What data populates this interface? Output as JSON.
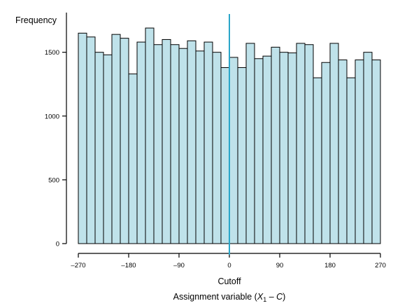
{
  "chart_data": {
    "type": "bar",
    "ylabel": "Frequency",
    "xlabel": "Assignment variable (X1 – C)",
    "xlabel_parts": {
      "prefix": "Assignment variable (",
      "var": "X",
      "sub": "1",
      "mid": " – ",
      "const": "C",
      "suffix": ")"
    },
    "cutoff_label": "Cutoff",
    "cutoff_value": 0,
    "cutoff_color": "#2aa6c9",
    "bar_color": "#bfe2ea",
    "xlim": [
      -270,
      270
    ],
    "ylim": [
      0,
      1800
    ],
    "xticks": [
      -270,
      -180,
      -90,
      0,
      90,
      180,
      270
    ],
    "xtick_labels": [
      "–270",
      "–180",
      "–90",
      "0",
      "90",
      "180",
      "270"
    ],
    "yticks": [
      0,
      500,
      1000,
      1500
    ],
    "ytick_labels": [
      "0",
      "500",
      "1000",
      "1500"
    ],
    "bin_width": 15,
    "bins_start": [
      -270,
      -255,
      -240,
      -225,
      -210,
      -195,
      -180,
      -165,
      -150,
      -135,
      -120,
      -105,
      -90,
      -75,
      -60,
      -45,
      -30,
      -15,
      0,
      15,
      30,
      45,
      60,
      75,
      90,
      105,
      120,
      135,
      150,
      165,
      180,
      195,
      210,
      225,
      240,
      255
    ],
    "values": [
      1650,
      1620,
      1500,
      1480,
      1640,
      1610,
      1330,
      1580,
      1690,
      1560,
      1600,
      1560,
      1530,
      1590,
      1510,
      1580,
      1500,
      1380,
      1460,
      1380,
      1570,
      1450,
      1470,
      1540,
      1500,
      1495,
      1570,
      1560,
      1300,
      1420,
      1570,
      1440,
      1300,
      1440,
      1500,
      1440
    ],
    "grid": false
  }
}
